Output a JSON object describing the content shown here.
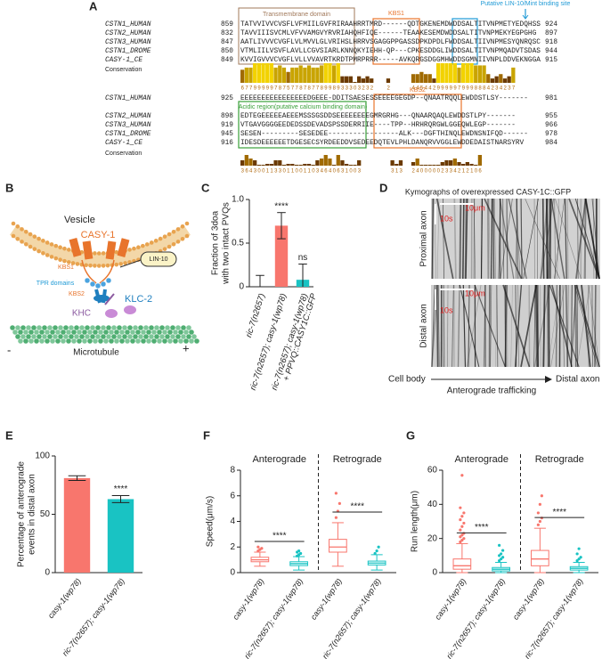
{
  "panel_labels": [
    "A",
    "B",
    "C",
    "D",
    "E",
    "F",
    "G"
  ],
  "alignment": {
    "block1": {
      "annotations": {
        "transmembrane": "Transmembrane domain",
        "kbs1": "KBS1",
        "lin10": "Putative LIN-10/Mint binding site"
      },
      "rows": [
        {
          "name": "CSTN1_HUMAN",
          "start": 859,
          "sequence": "TATVVIVVCVSFLVFMIILGVFRIRAAHRRTMRD------QDTGKENEMDWDDSALTITVNPMETYEDQHSS",
          "end": 924
        },
        {
          "name": "CSTN2_HUMAN",
          "start": 832,
          "sequence": "TAVVIIISVCMLVFVVAMGVYRVRIAHQHFIQE------TEAAKESEMDWDDSALTITVNPMEKYEGPGHG",
          "end": 897
        },
        {
          "name": "CSTN3_HUMAN",
          "start": 847,
          "sequence": "AATLIVVVCVGFLVLMVVLGLVRIHSLHRRVSGAGGPPGASSDPKDPDLFWDDSALTIIVNPMESYQNRQSC",
          "end": 918
        },
        {
          "name": "CSTN1_DROME",
          "start": 850,
          "sequence": "VTMLIILVSVFLAVLLCGVSIARLKNNQKYIEHH-QP---CPKESDDGLIWDDSALTITVNPMQADVTSDAS",
          "end": 944
        },
        {
          "name": "CASY-1_CE",
          "start": 849,
          "sequence": "KVVIGVVVCVGFLVLLVVAVRTKRDTPMRPRRR-----AVKQRGSDGGMHWDDSGMNIIVNPLDDVEKNGGA",
          "end": 915
        }
      ],
      "conservation_label": "Conservation",
      "conservation": [
        6,
        7,
        7,
        9,
        9,
        9,
        9,
        9,
        7,
        8,
        7,
        5,
        7,
        7,
        8,
        7,
        8,
        7,
        7,
        8,
        9,
        9,
        8,
        9,
        3,
        3,
        3,
        0,
        3,
        2,
        3,
        2,
        null,
        null,
        null,
        2,
        null,
        null,
        null,
        null,
        null,
        4,
        4,
        5,
        4,
        4,
        2,
        9,
        9,
        9,
        9,
        9,
        7,
        9,
        9,
        9,
        8,
        8,
        8,
        4,
        2,
        3,
        4,
        2,
        3,
        7,
        null,
        null,
        null,
        null
      ]
    },
    "block2": {
      "annotations": {
        "acidic": "Acidic region(putative calcium binding domain)",
        "kbs2": "KBS2"
      },
      "rows": [
        {
          "name": "CSTN1_HUMAN",
          "start": 925,
          "sequence": "EEEEEEEEEEEEEEEEDGEEE-DDITSAESESSEEEEGEGDP--QNAATRQQLEWDDSTLSY-------",
          "end": 981
        },
        {
          "name": "CSTN2_HUMAN",
          "start": 898,
          "sequence": "EDTEGEEEEEAEEEMSSSGSDDSEEEEEEEEGMRGRHG---QNAARQAQLEWDDSTLPY-------",
          "end": 955
        },
        {
          "name": "CSTN3_HUMAN",
          "start": 919,
          "sequence": "VTGAVGGGGEEDEDSSDEVADSPSSDERRIIE----TPP--HRHRQRGWLGGEQWLEGP-------",
          "end": 966
        },
        {
          "name": "CSTN1_DROME",
          "start": 945,
          "sequence": "SESEN---------SESEDEE-----------------ALK---DGFTHINQLEWDNSNIFQD------",
          "end": 978
        },
        {
          "name": "CASY-1_CE",
          "start": 916,
          "sequence": "IDESDEEEEEETDGESECSYRDEEDDVSEDEEDQTEVLPHLDANQRVVGGLEWDDEDAISTNARSYRV",
          "end": 984
        }
      ],
      "conservation_label": "Conservation",
      "conservation": [
        3,
        6,
        4,
        3,
        0,
        0,
        1,
        1,
        3,
        3,
        0,
        1,
        1,
        0,
        0,
        1,
        1,
        0,
        3,
        4,
        6,
        4,
        0,
        6,
        3,
        1,
        0,
        0,
        3,
        null,
        null,
        null,
        null,
        null,
        null,
        null,
        3,
        1,
        3,
        null,
        null,
        2,
        4,
        0,
        0,
        0,
        0,
        0,
        2,
        3,
        3,
        4,
        2,
        1,
        2,
        1,
        0,
        6,
        null,
        null,
        null,
        null,
        null,
        null,
        null
      ]
    }
  },
  "diagram": {
    "vesicle": "Vesicle",
    "casy1": "CASY-1",
    "kbs1": "KBS1",
    "lin10": "LIN-10",
    "tpr": "TPR domains",
    "kbs2": "KBS2",
    "klc2": "KLC-2",
    "khc": "KHC",
    "microtubule": "Microtubule",
    "minus": "-",
    "plus": "+"
  },
  "kymograph": {
    "title": "Kymographs of overexpressed CASY-1C::GFP",
    "proximal": "Proximal axon",
    "distal": "Distal axon",
    "time_scale": "10s",
    "length_scale": "10μm",
    "time_scale_2": "10s",
    "length_scale_2": "10μm",
    "cell_body": "Cell body",
    "direction": "Anterograde trafficking",
    "distal_end": "Distal axon"
  },
  "chart_data": [
    {
      "type": "bar",
      "ylabel": [
        "Fraction of 3doa",
        "with two intact PVQs"
      ],
      "categories": [
        [
          "ric-7(n2657)"
        ],
        [
          "ric-7(n2657); casy-1(wp78)"
        ],
        [
          "ric-7(n2657); casy-1(wp78)",
          "+ PPVQ::CASY1C::GFP"
        ]
      ],
      "values": [
        0,
        0.7,
        0.08
      ],
      "errors": [
        0.13,
        0.15,
        0.18
      ],
      "colors": [
        "#f8766d",
        "#f8766d",
        "#19c3c3"
      ],
      "significance": [
        null,
        "****",
        "ns"
      ],
      "ylim": [
        0,
        1
      ],
      "yticks": [
        0,
        0.5,
        {
          "value": 1,
          "label": "1.0"
        }
      ]
    },
    {
      "type": "bar",
      "ylabel": [
        "Percentage of anterograde",
        "events in distal axon"
      ],
      "categories": [
        [
          "casy-1(wp78)"
        ],
        [
          "ric-7(n2657); casy-1(wp78)"
        ]
      ],
      "values": [
        81,
        63
      ],
      "errors": [
        2,
        3
      ],
      "colors": [
        "#f8766d",
        "#19c3c3"
      ],
      "significance": [
        null,
        "****"
      ],
      "ylim": [
        0,
        100
      ],
      "yticks": [
        0,
        50,
        100
      ]
    },
    {
      "type": "box",
      "ylabel": [
        "Speed(μm/s)"
      ],
      "groups": [
        "Anterograde",
        "Retrograde"
      ],
      "categories": [
        [
          "casy-1(wp78)"
        ],
        [
          "ric-7(n2657); casy-1(wp78)"
        ],
        [
          "casy-1(wp78)"
        ],
        [
          "ric-7(n2657); casy-1(wp78)"
        ]
      ],
      "colors": [
        "#f8766d",
        "#19c3c3",
        "#f8766d",
        "#19c3c3"
      ],
      "boxes": [
        {
          "min": 0.5,
          "q1": 0.85,
          "median": 1.0,
          "q3": 1.2,
          "max": 1.6,
          "outliers": [
            1.7,
            1.8,
            1.9,
            2.0
          ]
        },
        {
          "min": 0.2,
          "q1": 0.55,
          "median": 0.7,
          "q3": 0.85,
          "max": 1.25,
          "outliers": [
            1.3,
            1.4,
            1.5,
            1.6,
            1.7
          ]
        },
        {
          "min": 0.5,
          "q1": 1.6,
          "median": 2.0,
          "q3": 2.6,
          "max": 3.9,
          "outliers": [
            4.3,
            4.8,
            5.4,
            6.2
          ]
        },
        {
          "min": 0.2,
          "q1": 0.6,
          "median": 0.75,
          "q3": 0.9,
          "max": 1.4,
          "outliers": [
            1.5,
            1.7,
            2.0
          ]
        }
      ],
      "significance": [
        "****",
        "****"
      ],
      "ylim": [
        0,
        8
      ],
      "yticks": [
        0,
        2,
        4,
        6,
        8
      ]
    },
    {
      "type": "box",
      "ylabel": [
        "Run length(μm)"
      ],
      "groups": [
        "Anterograde",
        "Retrograde"
      ],
      "categories": [
        [
          "casy-1(wp78)"
        ],
        [
          "ric-7(n2657); casy-1(wp78)"
        ],
        [
          "casy-1(wp78)"
        ],
        [
          "ric-7(n2657); casy-1(wp78)"
        ]
      ],
      "colors": [
        "#f8766d",
        "#19c3c3",
        "#f8766d",
        "#19c3c3"
      ],
      "boxes": [
        {
          "min": 0,
          "q1": 2,
          "median": 4,
          "q3": 8,
          "max": 17,
          "outliers": [
            18,
            19,
            20,
            21,
            22,
            23,
            25,
            27,
            29,
            31,
            33,
            35,
            38,
            57
          ]
        },
        {
          "min": 0,
          "q1": 1,
          "median": 2,
          "q3": 3,
          "max": 6,
          "outliers": [
            7,
            8,
            9,
            10,
            11,
            13,
            16
          ]
        },
        {
          "min": 0,
          "q1": 4,
          "median": 8,
          "q3": 13,
          "max": 26,
          "outliers": [
            28,
            30,
            32,
            35,
            40,
            45
          ]
        },
        {
          "min": 0,
          "q1": 1.5,
          "median": 2.5,
          "q3": 3.5,
          "max": 6,
          "outliers": [
            7,
            8,
            9,
            11,
            14
          ]
        }
      ],
      "significance": [
        "****",
        "****"
      ],
      "ylim": [
        0,
        60
      ],
      "yticks": [
        0,
        20,
        40,
        60
      ]
    }
  ]
}
